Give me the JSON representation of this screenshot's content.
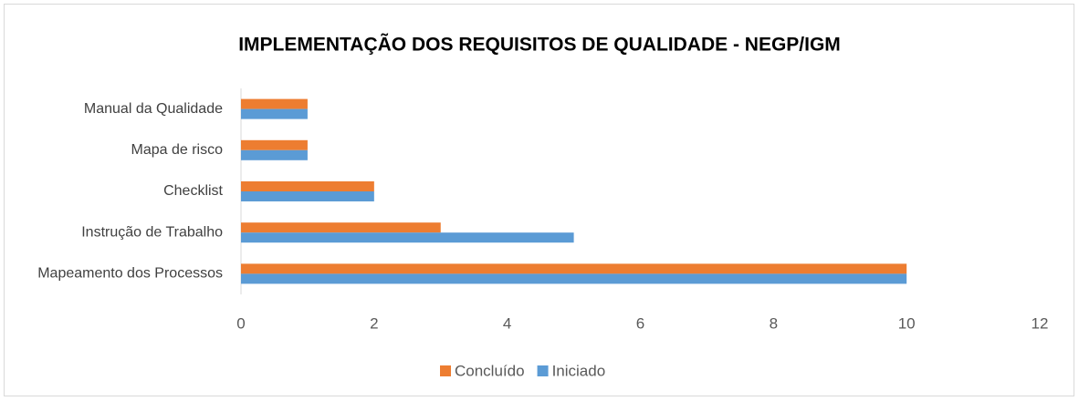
{
  "chart_data": {
    "type": "hbar",
    "title": "IMPLEMENTAÇÃO DOS REQUISITOS DE QUALIDADE - NEGP/IGM",
    "categories": [
      "Manual da Qualidade",
      "Mapa de risco",
      "Checklist",
      "Instrução de Trabalho",
      "Mapeamento dos Processos"
    ],
    "series": [
      {
        "name": "Concluído",
        "color": "#ed7d31",
        "values": [
          1,
          1,
          2,
          3,
          10
        ]
      },
      {
        "name": "Iniciado",
        "color": "#5b9bd5",
        "values": [
          1,
          1,
          2,
          5,
          10
        ]
      }
    ],
    "xlim": [
      0,
      12
    ],
    "xticks": [
      0,
      2,
      4,
      6,
      8,
      10,
      12
    ],
    "grid": false,
    "legend": "bottom"
  }
}
